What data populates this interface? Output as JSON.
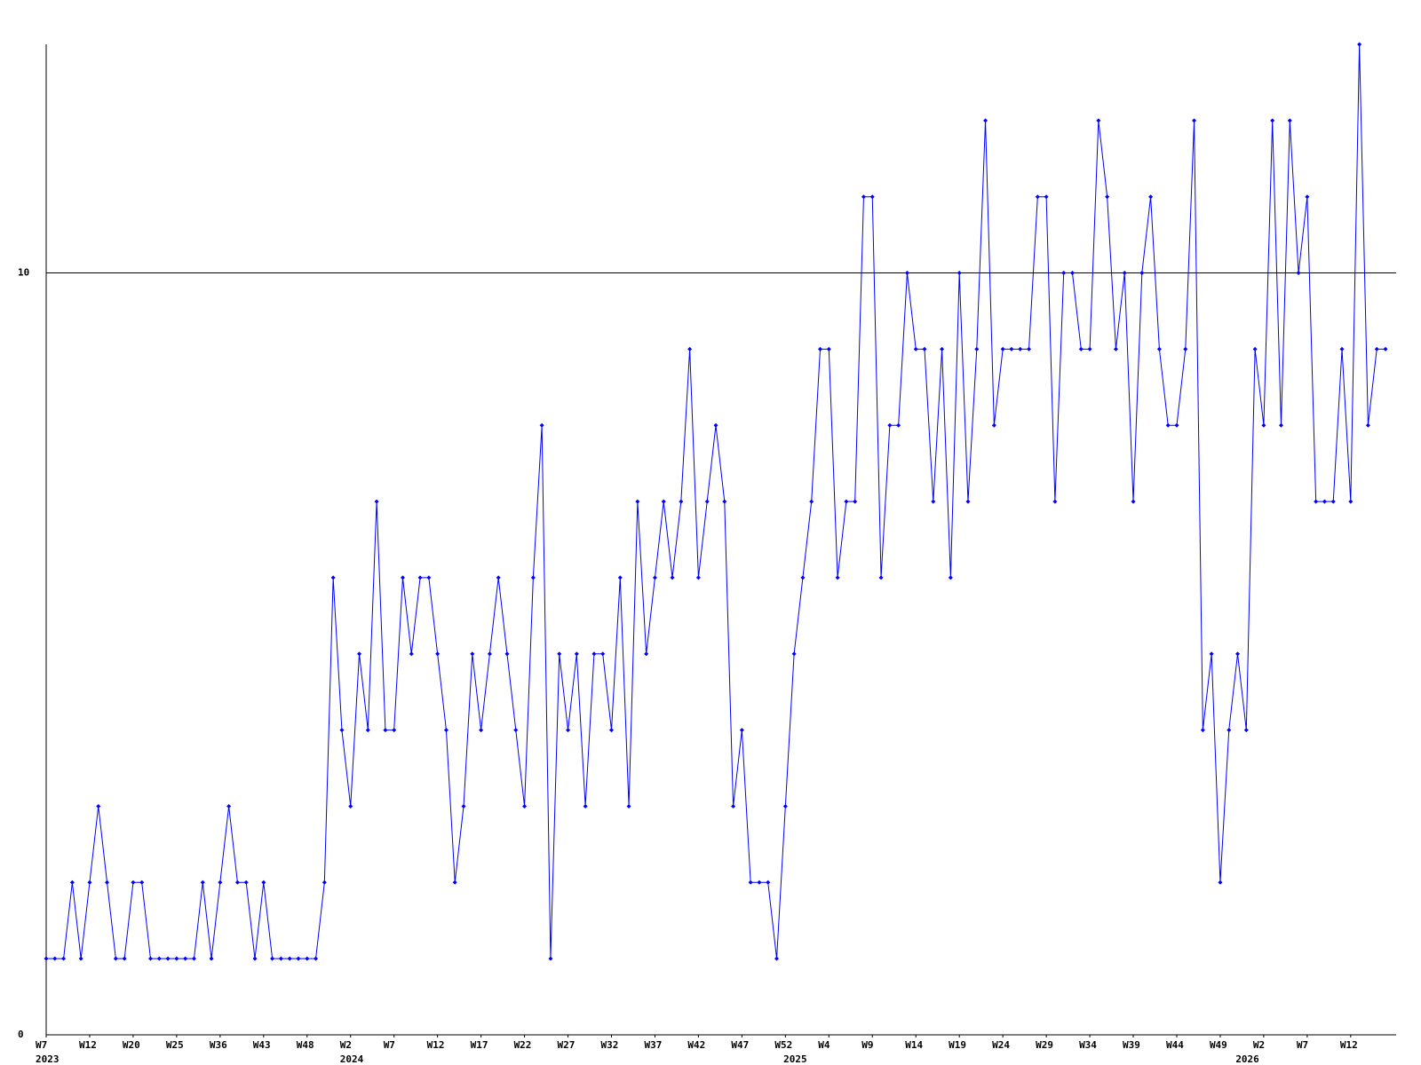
{
  "chart_data": {
    "type": "line",
    "color": "#0000ff",
    "series": [
      {
        "values": [
          1,
          1,
          1,
          2,
          1,
          2,
          3,
          2,
          1,
          1,
          2,
          2,
          1,
          1,
          1,
          1,
          1,
          1,
          2,
          1,
          2,
          3,
          2,
          2,
          1,
          2,
          1,
          1,
          1,
          1,
          1,
          1,
          2,
          6,
          4,
          3,
          5,
          4,
          7,
          4,
          4,
          6,
          5,
          6,
          6,
          5,
          4,
          2,
          3,
          5,
          4,
          5,
          6,
          5,
          4,
          3,
          6,
          8,
          1,
          5,
          4,
          5,
          3,
          5,
          5,
          4,
          6,
          3,
          7,
          5,
          6,
          7,
          6,
          7,
          9,
          6,
          7,
          8,
          7,
          3,
          4,
          2,
          2,
          2,
          1,
          3,
          5,
          6,
          7,
          9,
          9,
          6,
          7,
          7,
          11,
          11,
          6,
          8,
          8,
          10,
          9,
          9,
          7,
          9,
          6,
          10,
          7,
          9,
          12,
          8,
          9,
          9,
          9,
          9,
          11,
          11,
          7,
          10,
          10,
          9,
          9,
          12,
          11,
          9,
          10,
          7,
          10,
          11,
          9,
          8,
          8,
          9,
          12,
          4,
          5,
          2,
          4,
          5,
          4,
          9,
          8,
          12,
          8,
          12,
          10,
          11,
          7,
          7,
          7,
          9,
          7,
          13,
          8,
          9,
          9
        ]
      }
    ],
    "xlim": [
      0,
      154
    ],
    "xticks": [
      {
        "value": 0,
        "label": "W7"
      },
      {
        "value": 5,
        "label": "W12"
      },
      {
        "value": 10,
        "label": "W20"
      },
      {
        "value": 15,
        "label": "W25"
      },
      {
        "value": 20,
        "label": "W36"
      },
      {
        "value": 25,
        "label": "W43"
      },
      {
        "value": 30,
        "label": "W48"
      },
      {
        "value": 35,
        "label": "W2"
      },
      {
        "value": 40,
        "label": "W7"
      },
      {
        "value": 45,
        "label": "W12"
      },
      {
        "value": 50,
        "label": "W17"
      },
      {
        "value": 55,
        "label": "W22"
      },
      {
        "value": 60,
        "label": "W27"
      },
      {
        "value": 65,
        "label": "W32"
      },
      {
        "value": 70,
        "label": "W37"
      },
      {
        "value": 75,
        "label": "W42"
      },
      {
        "value": 80,
        "label": "W47"
      },
      {
        "value": 85,
        "label": "W52"
      },
      {
        "value": 90,
        "label": "W4"
      },
      {
        "value": 95,
        "label": "W9"
      },
      {
        "value": 100,
        "label": "W14"
      },
      {
        "value": 105,
        "label": "W19"
      },
      {
        "value": 110,
        "label": "W24"
      },
      {
        "value": 115,
        "label": "W29"
      },
      {
        "value": 120,
        "label": "W34"
      },
      {
        "value": 125,
        "label": "W39"
      },
      {
        "value": 130,
        "label": "W44"
      },
      {
        "value": 135,
        "label": "W49"
      },
      {
        "value": 140,
        "label": "W2"
      },
      {
        "value": 145,
        "label": "W7"
      },
      {
        "value": 150,
        "label": "W12"
      }
    ],
    "year_labels": [
      {
        "value": 0,
        "label": "2023"
      },
      {
        "value": 35,
        "label": "2024"
      },
      {
        "value": 86,
        "label": "2025"
      },
      {
        "value": 138,
        "label": "2026"
      }
    ],
    "ylim": [
      0,
      13
    ],
    "yticks": [
      0,
      10
    ],
    "grid": true
  }
}
